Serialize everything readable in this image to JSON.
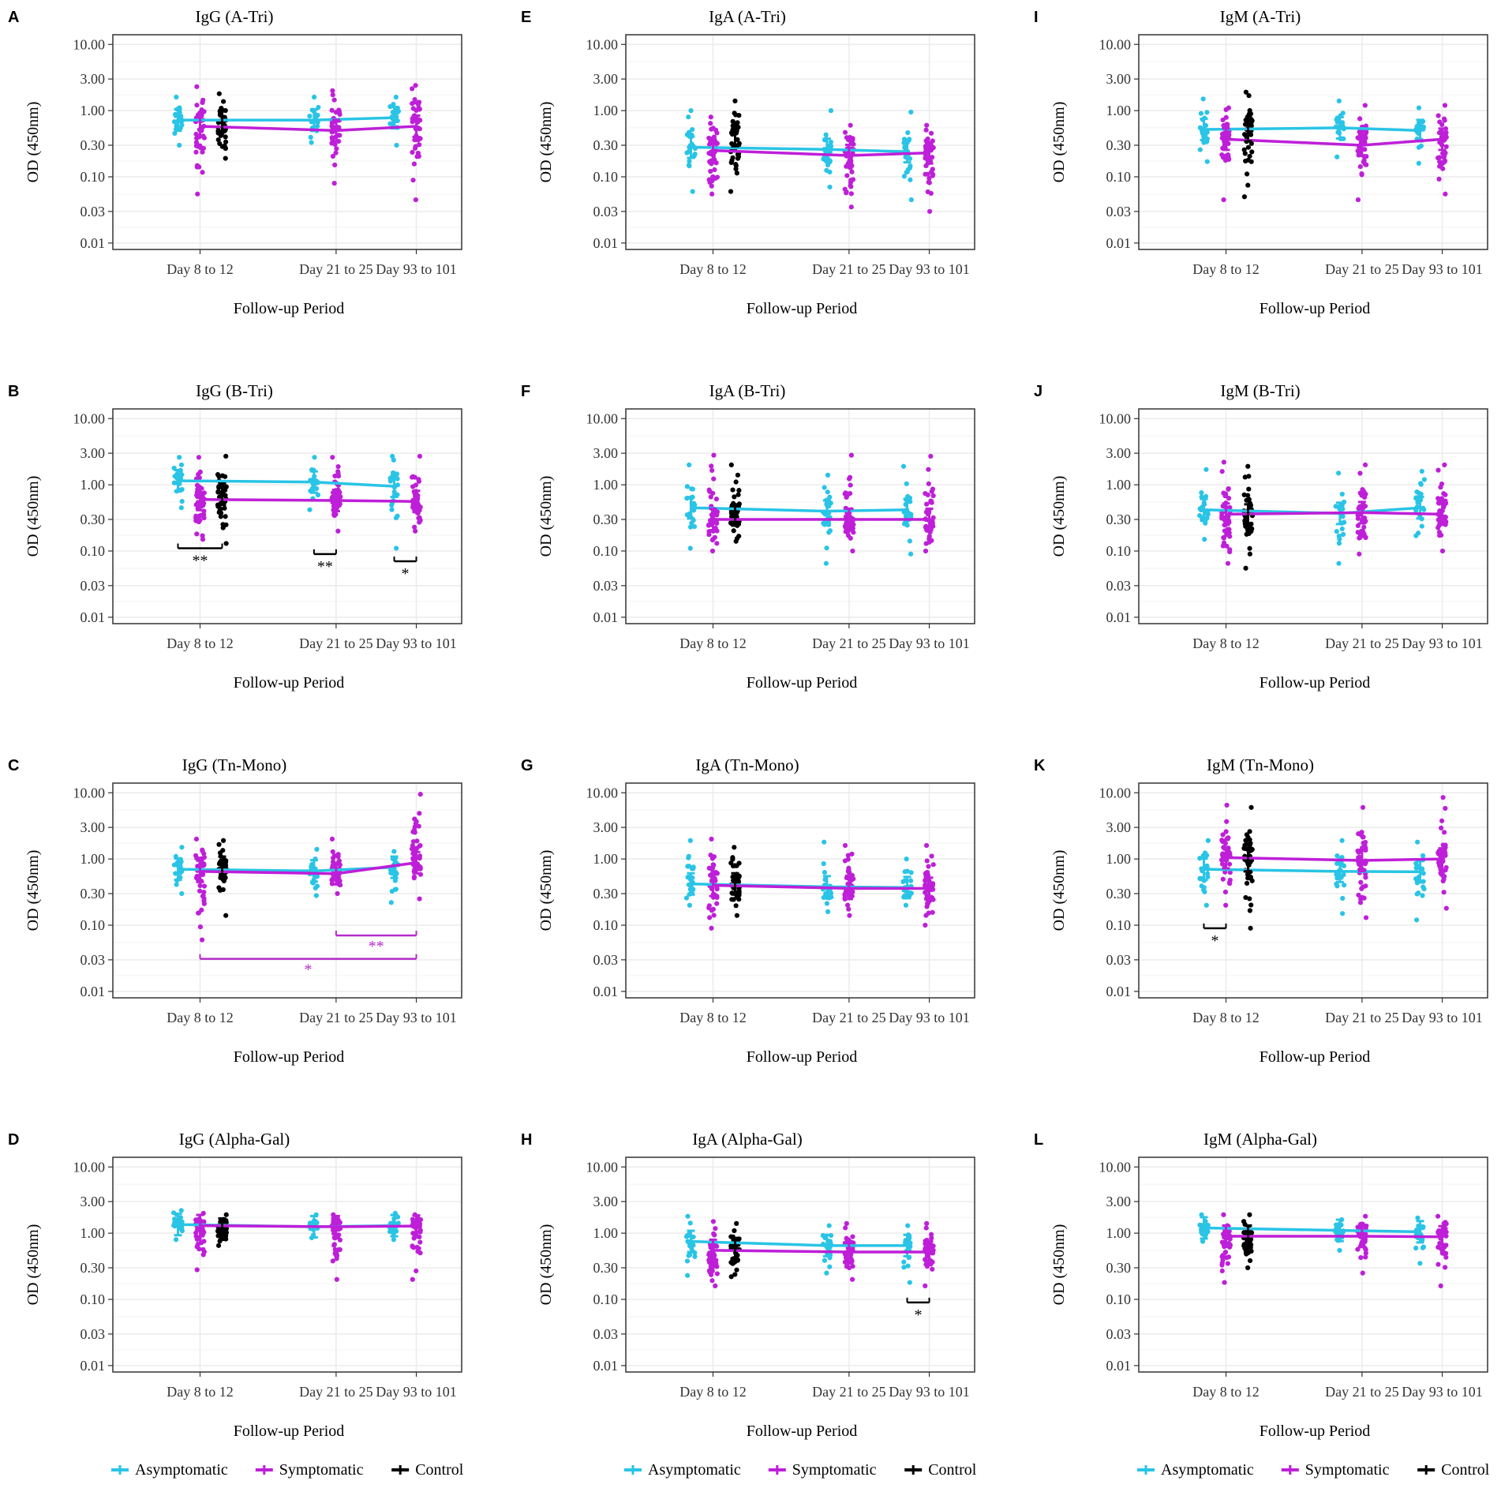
{
  "colors": {
    "asymptomatic": "#29c4e6",
    "symptomatic": "#be1fd8",
    "control": "#000000",
    "grid": "#ebebeb",
    "gridMinor": "#f3f3f3",
    "border": "#333333"
  },
  "legend": {
    "items": [
      {
        "label": "Asymptomatic",
        "color": "#29c4e6"
      },
      {
        "label": "Symptomatic",
        "color": "#be1fd8"
      },
      {
        "label": "Control",
        "color": "#000000"
      }
    ]
  },
  "chart_data": [
    {
      "letter": "A",
      "type": "scatter",
      "title": "IgG (A-Tri)",
      "xlabel": "Follow-up Period",
      "ylabel": "OD (450nm)",
      "yscale": "log",
      "ylim": [
        0.008,
        14
      ],
      "categories": [
        "Day 8 to 12",
        "Day 21 to 25",
        "Day 93 to 101"
      ],
      "yticks": [
        0.01,
        0.03,
        0.1,
        0.3,
        1,
        3,
        10
      ],
      "ytick_labels": [
        "0.01",
        "0.03",
        "0.10",
        "0.30",
        "1.00",
        "3.00",
        "10.00"
      ],
      "series": [
        {
          "name": "Asymptomatic",
          "means": [
            0.72,
            0.72,
            0.78
          ],
          "min": [
            0.3,
            0.33,
            0.3
          ],
          "max": [
            1.6,
            1.6,
            1.6
          ]
        },
        {
          "name": "Symptomatic",
          "means": [
            0.58,
            0.5,
            0.58
          ],
          "min": [
            0.055,
            0.08,
            0.045
          ],
          "max": [
            2.3,
            2.0,
            2.4
          ]
        },
        {
          "name": "Control",
          "means": [
            0.7
          ],
          "min": [
            0.19
          ],
          "max": [
            1.8
          ]
        }
      ],
      "annotations": []
    },
    {
      "letter": "B",
      "type": "scatter",
      "title": "IgG (B-Tri)",
      "xlabel": "Follow-up Period",
      "ylabel": "OD (450nm)",
      "yscale": "log",
      "ylim": [
        0.008,
        14
      ],
      "categories": [
        "Day 8 to 12",
        "Day 21 to 25",
        "Day 93 to 101"
      ],
      "yticks": [
        0.01,
        0.03,
        0.1,
        0.3,
        1,
        3,
        10
      ],
      "ytick_labels": [
        "0.01",
        "0.03",
        "0.10",
        "0.30",
        "1.00",
        "3.00",
        "10.00"
      ],
      "series": [
        {
          "name": "Asymptomatic",
          "means": [
            1.15,
            1.1,
            0.95
          ],
          "min": [
            0.45,
            0.42,
            0.11
          ],
          "max": [
            2.6,
            2.6,
            2.7
          ]
        },
        {
          "name": "Symptomatic",
          "means": [
            0.6,
            0.58,
            0.56
          ],
          "min": [
            0.15,
            0.2,
            0.2
          ],
          "max": [
            2.6,
            2.6,
            2.7
          ]
        },
        {
          "name": "Control",
          "means": [
            0.72
          ],
          "min": [
            0.13
          ],
          "max": [
            2.7
          ]
        }
      ],
      "annotations": [
        {
          "text": "**",
          "color": "#000000",
          "kind": "under",
          "from": "Asymptomatic",
          "to": "Control",
          "cat": [
            0,
            0
          ],
          "y": 0.11
        },
        {
          "text": "**",
          "color": "#000000",
          "kind": "under",
          "from": "Asymptomatic",
          "to": "Symptomatic",
          "cat": [
            1,
            1
          ],
          "y": 0.09
        },
        {
          "text": "*",
          "color": "#000000",
          "kind": "under",
          "from": "Asymptomatic",
          "to": "Symptomatic",
          "cat": [
            2,
            2
          ],
          "y": 0.07
        }
      ]
    },
    {
      "letter": "C",
      "type": "scatter",
      "title": "IgG (Tn-Mono)",
      "xlabel": "Follow-up Period",
      "ylabel": "OD (450nm)",
      "yscale": "log",
      "ylim": [
        0.008,
        14
      ],
      "categories": [
        "Day 8 to 12",
        "Day 21 to 25",
        "Day 93 to 101"
      ],
      "yticks": [
        0.01,
        0.03,
        0.1,
        0.3,
        1,
        3,
        10
      ],
      "ytick_labels": [
        "0.01",
        "0.03",
        "0.10",
        "0.30",
        "1.00",
        "3.00",
        "10.00"
      ],
      "series": [
        {
          "name": "Asymptomatic",
          "means": [
            0.7,
            0.66,
            0.75
          ],
          "min": [
            0.3,
            0.28,
            0.22
          ],
          "max": [
            1.5,
            1.4,
            1.3
          ]
        },
        {
          "name": "Symptomatic",
          "means": [
            0.65,
            0.6,
            0.88
          ],
          "min": [
            0.06,
            0.3,
            0.25
          ],
          "max": [
            2.0,
            2.0,
            9.5
          ]
        },
        {
          "name": "Control",
          "means": [
            0.75
          ],
          "min": [
            0.14
          ],
          "max": [
            1.9
          ]
        }
      ],
      "annotations": [
        {
          "text": "**",
          "color": "#b52bc9",
          "kind": "over",
          "from": "Symptomatic",
          "to": "Symptomatic",
          "cat": [
            1,
            2
          ],
          "y": 0.07
        },
        {
          "text": "*",
          "color": "#b52bc9",
          "kind": "over",
          "from": "Symptomatic",
          "to": "Symptomatic",
          "cat": [
            0,
            2
          ],
          "y": 0.031
        }
      ]
    },
    {
      "letter": "D",
      "type": "scatter",
      "title": "IgG (Alpha-Gal)",
      "xlabel": "Follow-up Period",
      "ylabel": "OD (450nm)",
      "yscale": "log",
      "ylim": [
        0.008,
        14
      ],
      "categories": [
        "Day 8 to 12",
        "Day 21 to 25",
        "Day 93 to 101"
      ],
      "yticks": [
        0.01,
        0.03,
        0.1,
        0.3,
        1,
        3,
        10
      ],
      "ytick_labels": [
        "0.01",
        "0.03",
        "0.10",
        "0.30",
        "1.00",
        "3.00",
        "10.00"
      ],
      "series": [
        {
          "name": "Asymptomatic",
          "means": [
            1.35,
            1.25,
            1.3
          ],
          "min": [
            0.8,
            0.85,
            0.8
          ],
          "max": [
            2.2,
            1.9,
            2.0
          ]
        },
        {
          "name": "Symptomatic",
          "means": [
            1.3,
            1.25,
            1.28
          ],
          "min": [
            0.28,
            0.2,
            0.2
          ],
          "max": [
            2.0,
            1.9,
            1.9
          ]
        },
        {
          "name": "Control",
          "means": [
            1.15
          ],
          "min": [
            0.65
          ],
          "max": [
            1.9
          ]
        }
      ],
      "annotations": []
    },
    {
      "letter": "E",
      "type": "scatter",
      "title": "IgA (A-Tri)",
      "xlabel": "Follow-up Period",
      "ylabel": "OD (450nm)",
      "yscale": "log",
      "ylim": [
        0.008,
        14
      ],
      "categories": [
        "Day 8 to 12",
        "Day 21 to 25",
        "Day 93 to 101"
      ],
      "yticks": [
        0.01,
        0.03,
        0.1,
        0.3,
        1,
        3,
        10
      ],
      "ytick_labels": [
        "0.01",
        "0.03",
        "0.10",
        "0.30",
        "1.00",
        "3.00",
        "10.00"
      ],
      "series": [
        {
          "name": "Asymptomatic",
          "means": [
            0.28,
            0.26,
            0.24
          ],
          "min": [
            0.06,
            0.07,
            0.045
          ],
          "max": [
            1.0,
            1.0,
            0.95
          ]
        },
        {
          "name": "Symptomatic",
          "means": [
            0.25,
            0.21,
            0.23
          ],
          "min": [
            0.055,
            0.035,
            0.03
          ],
          "max": [
            0.8,
            0.6,
            0.6
          ]
        },
        {
          "name": "Control",
          "means": [
            0.42
          ],
          "min": [
            0.06
          ],
          "max": [
            1.4
          ]
        }
      ],
      "annotations": []
    },
    {
      "letter": "F",
      "type": "scatter",
      "title": "IgA (B-Tri)",
      "xlabel": "Follow-up Period",
      "ylabel": "OD (450nm)",
      "yscale": "log",
      "ylim": [
        0.008,
        14
      ],
      "categories": [
        "Day 8 to 12",
        "Day 21 to 25",
        "Day 93 to 101"
      ],
      "yticks": [
        0.01,
        0.03,
        0.1,
        0.3,
        1,
        3,
        10
      ],
      "ytick_labels": [
        "0.01",
        "0.03",
        "0.10",
        "0.30",
        "1.00",
        "3.00",
        "10.00"
      ],
      "series": [
        {
          "name": "Asymptomatic",
          "means": [
            0.45,
            0.4,
            0.42
          ],
          "min": [
            0.11,
            0.065,
            0.09
          ],
          "max": [
            2.0,
            1.4,
            1.9
          ]
        },
        {
          "name": "Symptomatic",
          "means": [
            0.3,
            0.3,
            0.3
          ],
          "min": [
            0.1,
            0.1,
            0.1
          ],
          "max": [
            2.8,
            2.8,
            2.7
          ]
        },
        {
          "name": "Control",
          "means": [
            0.35
          ],
          "min": [
            0.14
          ],
          "max": [
            2.0
          ]
        }
      ],
      "annotations": []
    },
    {
      "letter": "G",
      "type": "scatter",
      "title": "IgA (Tn-Mono)",
      "xlabel": "Follow-up Period",
      "ylabel": "OD (450nm)",
      "yscale": "log",
      "ylim": [
        0.008,
        14
      ],
      "categories": [
        "Day 8 to 12",
        "Day 21 to 25",
        "Day 93 to 101"
      ],
      "yticks": [
        0.01,
        0.03,
        0.1,
        0.3,
        1,
        3,
        10
      ],
      "ytick_labels": [
        "0.01",
        "0.03",
        "0.10",
        "0.30",
        "1.00",
        "3.00",
        "10.00"
      ],
      "series": [
        {
          "name": "Asymptomatic",
          "means": [
            0.42,
            0.38,
            0.37
          ],
          "min": [
            0.2,
            0.16,
            0.2
          ],
          "max": [
            1.9,
            1.8,
            1.0
          ]
        },
        {
          "name": "Symptomatic",
          "means": [
            0.4,
            0.36,
            0.36
          ],
          "min": [
            0.09,
            0.14,
            0.1
          ],
          "max": [
            2.0,
            1.6,
            1.6
          ]
        },
        {
          "name": "Control",
          "means": [
            0.42
          ],
          "min": [
            0.14
          ],
          "max": [
            1.5
          ]
        }
      ],
      "annotations": []
    },
    {
      "letter": "H",
      "type": "scatter",
      "title": "IgA (Alpha-Gal)",
      "xlabel": "Follow-up Period",
      "ylabel": "OD (450nm)",
      "yscale": "log",
      "ylim": [
        0.008,
        14
      ],
      "categories": [
        "Day 8 to 12",
        "Day 21 to 25",
        "Day 93 to 101"
      ],
      "yticks": [
        0.01,
        0.03,
        0.1,
        0.3,
        1,
        3,
        10
      ],
      "ytick_labels": [
        "0.01",
        "0.03",
        "0.10",
        "0.30",
        "1.00",
        "3.00",
        "10.00"
      ],
      "series": [
        {
          "name": "Asymptomatic",
          "means": [
            0.75,
            0.65,
            0.65
          ],
          "min": [
            0.23,
            0.25,
            0.18
          ],
          "max": [
            1.8,
            1.3,
            1.3
          ]
        },
        {
          "name": "Symptomatic",
          "means": [
            0.55,
            0.52,
            0.52
          ],
          "min": [
            0.16,
            0.2,
            0.16
          ],
          "max": [
            1.5,
            1.4,
            1.4
          ]
        },
        {
          "name": "Control",
          "means": [
            0.55
          ],
          "min": [
            0.22
          ],
          "max": [
            1.4
          ]
        }
      ],
      "annotations": [
        {
          "text": "*",
          "color": "#000000",
          "kind": "under",
          "from": "Asymptomatic",
          "to": "Symptomatic",
          "cat": [
            2,
            2
          ],
          "y": 0.09
        }
      ]
    },
    {
      "letter": "I",
      "type": "scatter",
      "title": "IgM (A-Tri)",
      "xlabel": "Follow-up Period",
      "ylabel": "OD (450nm)",
      "yscale": "log",
      "ylim": [
        0.008,
        14
      ],
      "categories": [
        "Day 8 to 12",
        "Day 21 to 25",
        "Day 93 to 101"
      ],
      "yticks": [
        0.01,
        0.03,
        0.1,
        0.3,
        1,
        3,
        10
      ],
      "ytick_labels": [
        "0.01",
        "0.03",
        "0.10",
        "0.30",
        "1.00",
        "3.00",
        "10.00"
      ],
      "series": [
        {
          "name": "Asymptomatic",
          "means": [
            0.52,
            0.55,
            0.5
          ],
          "min": [
            0.17,
            0.2,
            0.16
          ],
          "max": [
            1.5,
            1.4,
            1.1
          ]
        },
        {
          "name": "Symptomatic",
          "means": [
            0.37,
            0.3,
            0.37
          ],
          "min": [
            0.045,
            0.045,
            0.055
          ],
          "max": [
            1.1,
            1.2,
            1.2
          ]
        },
        {
          "name": "Control",
          "means": [
            0.5
          ],
          "min": [
            0.05
          ],
          "max": [
            1.9
          ]
        }
      ],
      "annotations": []
    },
    {
      "letter": "J",
      "type": "scatter",
      "title": "IgM (B-Tri)",
      "xlabel": "Follow-up Period",
      "ylabel": "OD (450nm)",
      "yscale": "log",
      "ylim": [
        0.008,
        14
      ],
      "categories": [
        "Day 8 to 12",
        "Day 21 to 25",
        "Day 93 to 101"
      ],
      "yticks": [
        0.01,
        0.03,
        0.1,
        0.3,
        1,
        3,
        10
      ],
      "ytick_labels": [
        "0.01",
        "0.03",
        "0.10",
        "0.30",
        "1.00",
        "3.00",
        "10.00"
      ],
      "series": [
        {
          "name": "Asymptomatic",
          "means": [
            0.42,
            0.37,
            0.45
          ],
          "min": [
            0.15,
            0.065,
            0.17
          ],
          "max": [
            1.7,
            1.5,
            1.6
          ]
        },
        {
          "name": "Symptomatic",
          "means": [
            0.36,
            0.38,
            0.36
          ],
          "min": [
            0.065,
            0.09,
            0.1
          ],
          "max": [
            2.2,
            2.0,
            2.0
          ]
        },
        {
          "name": "Control",
          "means": [
            0.35
          ],
          "min": [
            0.055
          ],
          "max": [
            1.9
          ]
        }
      ],
      "annotations": []
    },
    {
      "letter": "K",
      "type": "scatter",
      "title": "IgM (Tn-Mono)",
      "xlabel": "Follow-up Period",
      "ylabel": "OD (450nm)",
      "yscale": "log",
      "ylim": [
        0.008,
        14
      ],
      "categories": [
        "Day 8 to 12",
        "Day 21 to 25",
        "Day 93 to 101"
      ],
      "yticks": [
        0.01,
        0.03,
        0.1,
        0.3,
        1,
        3,
        10
      ],
      "ytick_labels": [
        "0.01",
        "0.03",
        "0.10",
        "0.30",
        "1.00",
        "3.00",
        "10.00"
      ],
      "series": [
        {
          "name": "Asymptomatic",
          "means": [
            0.7,
            0.65,
            0.64
          ],
          "min": [
            0.2,
            0.15,
            0.12
          ],
          "max": [
            1.9,
            1.9,
            1.8
          ]
        },
        {
          "name": "Symptomatic",
          "means": [
            1.05,
            0.95,
            1.0
          ],
          "min": [
            0.2,
            0.13,
            0.18
          ],
          "max": [
            6.5,
            6.0,
            8.5
          ]
        },
        {
          "name": "Control",
          "means": [
            0.95
          ],
          "min": [
            0.09
          ],
          "max": [
            6.0
          ]
        }
      ],
      "annotations": [
        {
          "text": "*",
          "color": "#000000",
          "kind": "under",
          "from": "Asymptomatic",
          "to": "Symptomatic",
          "cat": [
            0,
            0
          ],
          "y": 0.09
        }
      ]
    },
    {
      "letter": "L",
      "type": "scatter",
      "title": "IgM (Alpha-Gal)",
      "xlabel": "Follow-up Period",
      "ylabel": "OD (450nm)",
      "yscale": "log",
      "ylim": [
        0.008,
        14
      ],
      "categories": [
        "Day 8 to 12",
        "Day 21 to 25",
        "Day 93 to 101"
      ],
      "yticks": [
        0.01,
        0.03,
        0.1,
        0.3,
        1,
        3,
        10
      ],
      "ytick_labels": [
        "0.01",
        "0.03",
        "0.10",
        "0.30",
        "1.00",
        "3.00",
        "10.00"
      ],
      "series": [
        {
          "name": "Asymptomatic",
          "means": [
            1.2,
            1.1,
            1.05
          ],
          "min": [
            0.75,
            0.55,
            0.35
          ],
          "max": [
            1.9,
            1.6,
            1.7
          ]
        },
        {
          "name": "Symptomatic",
          "means": [
            0.9,
            0.9,
            0.88
          ],
          "min": [
            0.18,
            0.25,
            0.16
          ],
          "max": [
            1.9,
            1.8,
            1.8
          ]
        },
        {
          "name": "Control",
          "means": [
            0.9
          ],
          "min": [
            0.3
          ],
          "max": [
            1.9
          ]
        }
      ],
      "annotations": []
    }
  ]
}
